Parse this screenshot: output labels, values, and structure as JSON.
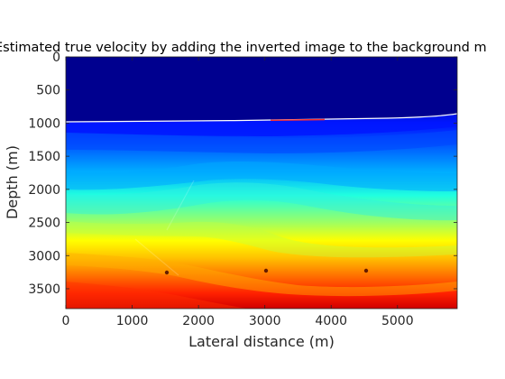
{
  "chart_data": {
    "type": "heatmap",
    "title": "Estimated true velocity by adding the inverted image to the background m",
    "xlabel": "Lateral distance (m)",
    "ylabel": "Depth (m)",
    "xlim": [
      0,
      5900
    ],
    "ylim": [
      0,
      3800
    ],
    "y_reversed": true,
    "xticks": [
      0,
      1000,
      2000,
      3000,
      4000,
      5000
    ],
    "yticks": [
      0,
      500,
      1000,
      1500,
      2000,
      2500,
      3000,
      3500
    ],
    "xtick_labels": [
      "0",
      "1000",
      "2000",
      "3000",
      "4000",
      "5000"
    ],
    "ytick_labels": [
      "0",
      "500",
      "1000",
      "1500",
      "2000",
      "2500",
      "3000",
      "3500"
    ],
    "colormap": "jet",
    "grid": false,
    "colors": {
      "axis": "#262626",
      "water": "#00008f",
      "seafloor": "#ffffff"
    }
  }
}
